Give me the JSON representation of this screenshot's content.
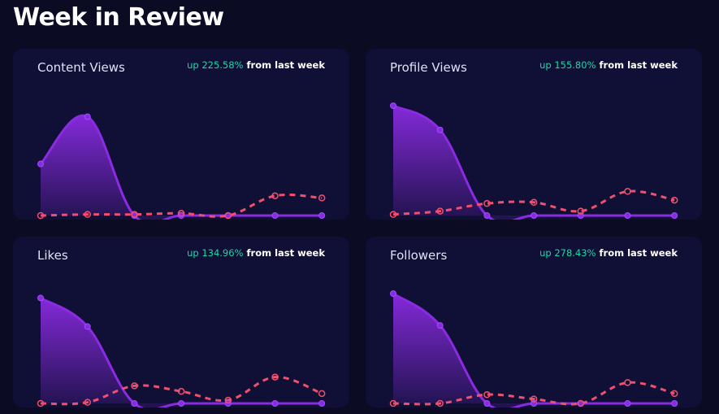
{
  "page_title": "Week in Review",
  "colors": {
    "current": "#8a2be2",
    "previous": "#f0506e",
    "positive": "#19d9a8"
  },
  "cards": [
    {
      "title": "Content Views",
      "change": "up 225.58%",
      "suffix": "from last week",
      "chart_data": {
        "type": "area",
        "current": [
          47,
          90,
          0,
          0,
          0,
          0,
          0
        ],
        "previous": [
          0,
          1,
          1,
          2,
          0,
          18,
          16
        ]
      }
    },
    {
      "title": "Profile Views",
      "change": "up 155.80%",
      "suffix": "from last week",
      "chart_data": {
        "type": "area",
        "current": [
          100,
          78,
          0,
          0,
          0,
          0,
          0
        ],
        "previous": [
          1,
          4,
          11,
          12,
          4,
          22,
          14
        ]
      }
    },
    {
      "title": "Likes",
      "change": "up 134.96%",
      "suffix": "from last week",
      "chart_data": {
        "type": "area",
        "current": [
          96,
          70,
          0,
          0,
          0,
          0,
          0
        ],
        "previous": [
          0,
          1,
          16,
          11,
          3,
          24,
          9
        ]
      }
    },
    {
      "title": "Followers",
      "change": "up 278.43%",
      "suffix": "from last week",
      "chart_data": {
        "type": "area",
        "current": [
          100,
          71,
          0,
          0,
          0,
          0,
          0
        ],
        "previous": [
          0,
          0,
          8,
          4,
          0,
          19,
          9
        ]
      }
    }
  ]
}
